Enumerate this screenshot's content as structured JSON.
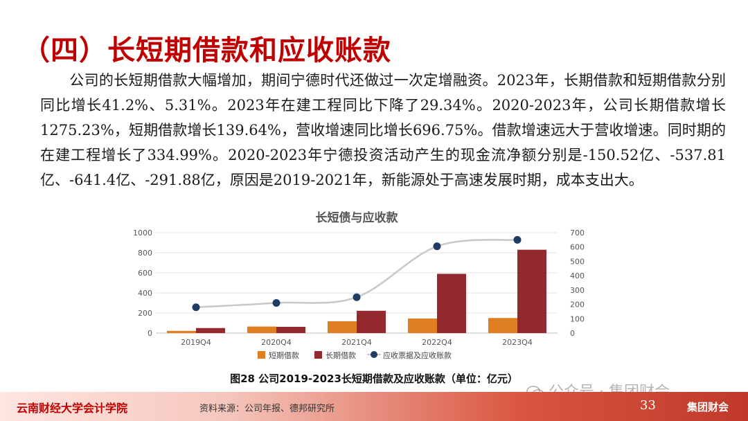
{
  "header": {
    "title": "（四）长短期借款和应收账款"
  },
  "body": {
    "paragraph": "公司的长短期借款大幅增加，期间宁德时代还做过一次定增融资。2023年，长期借款和短期借款分别同比增长41.2%、5.31%。2023年在建工程同比下降了29.34%。2020-2023年，公司长期借款增长1275.23%，短期借款增长139.64%，营收增速同比增长696.75%。借款增速远大于营收增速。同时期的在建工程增长了334.99%。2020-2023年宁德投资活动产生的现金流净额分别是-150.52亿、-537.81亿、-641.4亿、-291.88亿，原因是2019-2021年，新能源处于高速发展时期，成本支出大。"
  },
  "chart_data": {
    "type": "bar",
    "title": "长短债与应收款",
    "categories": [
      "2019Q4",
      "2020Q4",
      "2021Q4",
      "2022Q4",
      "2023Q4"
    ],
    "ylim_left": [
      0,
      1000
    ],
    "yticks_left": [
      "1000",
      "800",
      "600",
      "400",
      "200",
      "0"
    ],
    "ylim_right": [
      0,
      700
    ],
    "yticks_right": [
      "700",
      "600",
      "500",
      "400",
      "300",
      "200",
      "100",
      "0"
    ],
    "series": [
      {
        "name": "短期借款",
        "kind": "bar",
        "axis": "left",
        "color": "#e07f22",
        "values": [
          22,
          65,
          118,
          145,
          150
        ]
      },
      {
        "name": "长期借款",
        "kind": "bar",
        "axis": "left",
        "color": "#93282f",
        "values": [
          50,
          62,
          222,
          590,
          830
        ]
      },
      {
        "name": "应收票据及应收账款",
        "kind": "line",
        "axis": "right",
        "color": "#1f3c64",
        "line_color": "#c8c8c8",
        "values": [
          180,
          210,
          250,
          605,
          650
        ]
      }
    ],
    "grid": true,
    "legend_position": "bottom"
  },
  "caption": "图28  公司2019-2023长短期借款及应收账款（单位：亿元）",
  "footer": {
    "school": "云南财经大学会计学院",
    "source": "资料来源：公司年报、德邦研究所",
    "page": "33",
    "brand": "集团财会"
  },
  "watermark": {
    "text": "公众号 · 集团财会"
  }
}
